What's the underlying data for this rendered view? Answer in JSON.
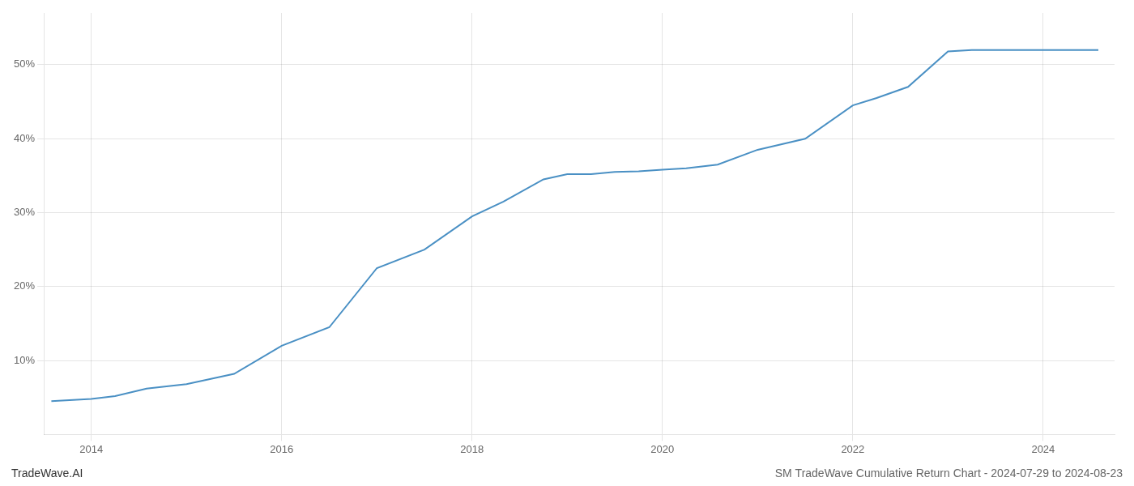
{
  "chart_data": {
    "type": "line",
    "title": "SM TradeWave Cumulative Return Chart - 2024-07-29 to 2024-08-23",
    "annotations": [
      "TradeWave.AI"
    ],
    "x": [
      2013.58,
      2014.0,
      2014.25,
      2014.58,
      2015.0,
      2015.5,
      2016.0,
      2016.5,
      2017.0,
      2017.5,
      2018.0,
      2018.33,
      2018.75,
      2019.0,
      2019.25,
      2019.5,
      2019.75,
      2020.0,
      2020.25,
      2020.58,
      2021.0,
      2021.5,
      2022.0,
      2022.25,
      2022.58,
      2023.0,
      2023.25,
      2023.5,
      2023.75,
      2024.0,
      2024.25,
      2024.58
    ],
    "values": [
      4.5,
      4.8,
      5.2,
      6.2,
      6.8,
      8.2,
      12.0,
      14.5,
      22.5,
      25.0,
      29.5,
      31.5,
      34.5,
      35.2,
      35.2,
      35.5,
      35.6,
      35.8,
      36.0,
      36.5,
      38.5,
      40.0,
      44.5,
      45.5,
      47.0,
      51.8,
      52.0,
      52.0,
      52.0,
      52.0,
      52.0,
      52.0
    ],
    "color": "#4a90c4",
    "xlim": [
      2013.5,
      2024.75
    ],
    "xticks": [
      2014,
      2016,
      2018,
      2020,
      2022,
      2024
    ],
    "ylim": [
      0,
      57
    ],
    "yticks": [
      {
        "value": 10,
        "label": "10%"
      },
      {
        "value": 20,
        "label": "20%"
      },
      {
        "value": 30,
        "label": "30%"
      },
      {
        "value": 40,
        "label": "40%"
      },
      {
        "value": 50,
        "label": "50%"
      }
    ],
    "grid": true
  }
}
